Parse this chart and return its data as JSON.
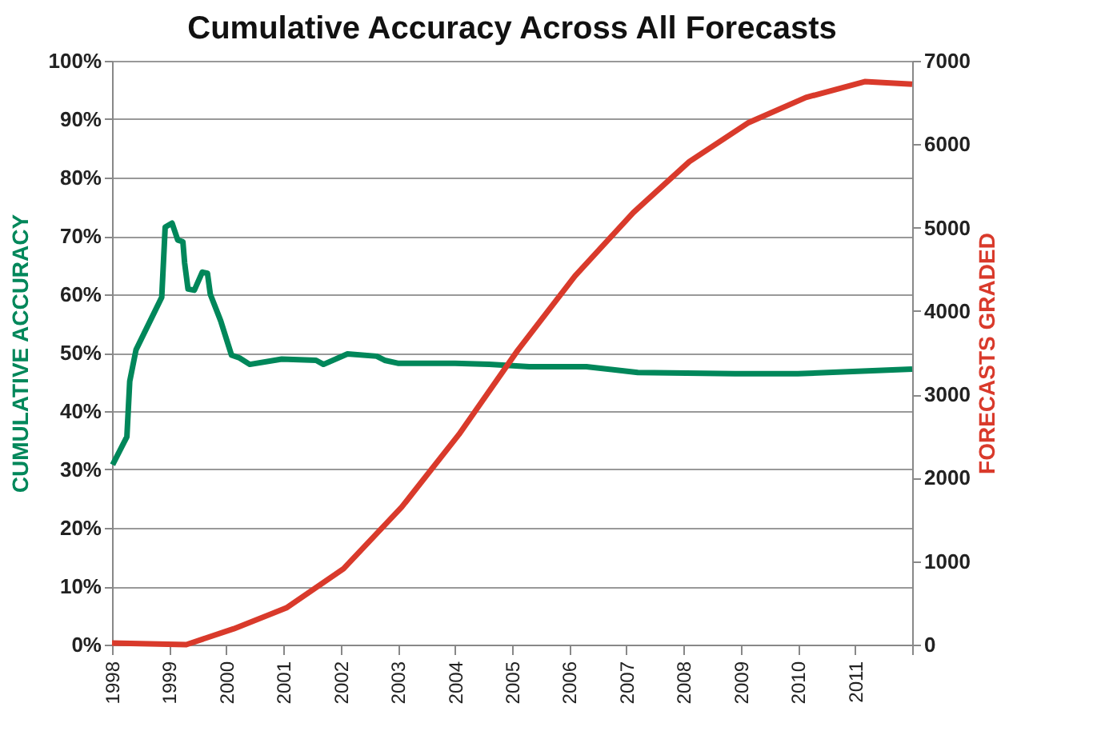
{
  "chart_data": {
    "type": "line",
    "title": "Cumulative Accuracy Across All Forecasts",
    "ylabel": "CUMULATIVE ACCURACY",
    "y2label": "FORECASTS GRADED",
    "xlim": [
      1998,
      2012
    ],
    "xticks": [
      1998,
      1999,
      2000,
      2001,
      2002,
      2003,
      2004,
      2005,
      2006,
      2007,
      2008,
      2009,
      2010,
      2011,
      {
        "value": 2012,
        "label": null
      }
    ],
    "ylim": [
      0,
      100
    ],
    "yticks": [
      {
        "value": 0,
        "label": "0%"
      },
      {
        "value": 10,
        "label": "10%"
      },
      {
        "value": 20,
        "label": "20%"
      },
      {
        "value": 30,
        "label": "30%"
      },
      {
        "value": 40,
        "label": "40%"
      },
      {
        "value": 50,
        "label": "50%"
      },
      {
        "value": 60,
        "label": "60%"
      },
      {
        "value": 70,
        "label": "70%"
      },
      {
        "value": 80,
        "label": "80%"
      },
      {
        "value": 90,
        "label": "90%"
      },
      {
        "value": 100,
        "label": "100%"
      }
    ],
    "y2lim": [
      0,
      7000
    ],
    "y2ticks": [
      0,
      1000,
      2000,
      3000,
      4000,
      5000,
      6000,
      7000
    ],
    "grid": "y",
    "line_style": "solid",
    "marker": "none",
    "series": [
      {
        "color": "#00875a",
        "x": [
          1998.01,
          1998.26,
          1998.31,
          1998.42,
          1998.87,
          1998.93,
          1999.05,
          1999.15,
          1999.24,
          1999.27,
          1999.33,
          1999.44,
          1999.58,
          1999.67,
          1999.72,
          1999.9,
          2000.09,
          2000.23,
          2000.41,
          2000.97,
          2001.57,
          2001.7,
          2002.12,
          2002.63,
          2002.77,
          2003.0,
          2004.0,
          2004.6,
          2005.3,
          2006.3,
          2007.2,
          2008.9,
          2010.0,
          2012.0
        ],
        "values": [
          30.8,
          35.6,
          45.1,
          50.5,
          59.5,
          71.5,
          72.2,
          69.3,
          69.0,
          65.4,
          60.9,
          60.7,
          63.8,
          63.6,
          60.0,
          55.5,
          49.6,
          49.1,
          48.0,
          48.9,
          48.7,
          48.0,
          49.8,
          49.4,
          48.7,
          48.2,
          48.2,
          48.0,
          47.6,
          47.6,
          46.6,
          46.4,
          46.4,
          47.2
        ]
      },
      {
        "color": "#d93a2b",
        "axis": "y2",
        "x": [
          1998,
          1999.3,
          2000.13,
          2001.05,
          2002.05,
          2003.07,
          2004.07,
          2005.1,
          2006.1,
          2007.12,
          2008.1,
          2009.14,
          2010.14,
          2011.17,
          2012.0
        ],
        "values": [
          20,
          0,
          190,
          440,
          910,
          1650,
          2520,
          3530,
          4420,
          5180,
          5790,
          6260,
          6560,
          6750,
          6720
        ]
      }
    ]
  }
}
